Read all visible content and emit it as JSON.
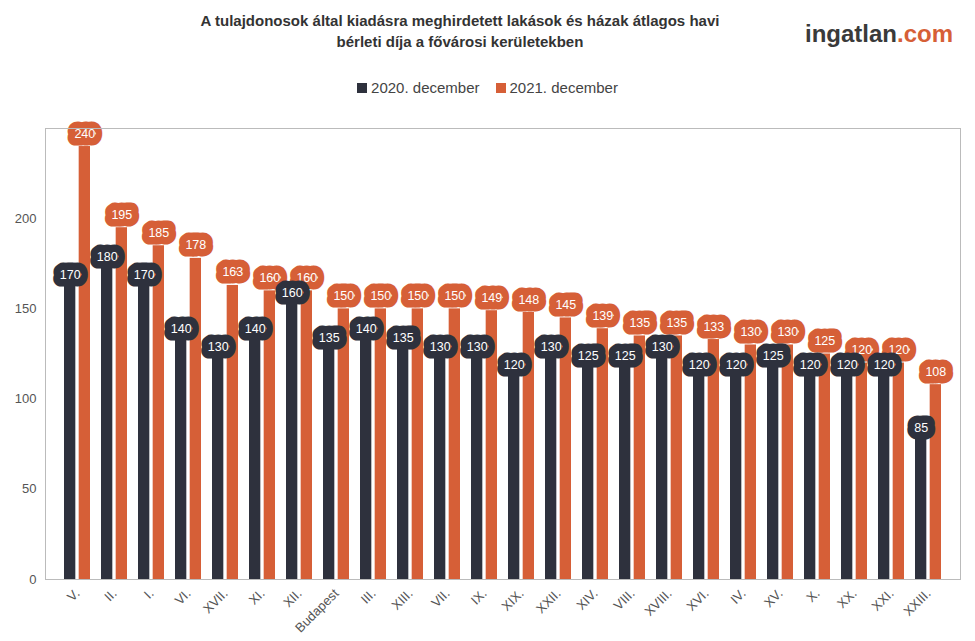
{
  "chart_data": {
    "type": "bar",
    "title": "A tulajdonosok által kiadásra meghirdetett lakások és házak átlagos havi bérleti díja a fővárosi kerületekben",
    "brand": "ingatlan.com",
    "categories": [
      "V.",
      "II.",
      "I.",
      "VI.",
      "XVII.",
      "XI.",
      "XII.",
      "Budapest",
      "III.",
      "XIII.",
      "VII.",
      "IX.",
      "XIX.",
      "XXII.",
      "XIV.",
      "VIII.",
      "XVIII.",
      "XVI.",
      "IV.",
      "XV.",
      "X.",
      "XX.",
      "XXI.",
      "XXIII."
    ],
    "series": [
      {
        "name": "2020. december",
        "color": "#2e313d",
        "values": [
          170,
          180,
          170,
          140,
          130,
          140,
          160,
          135,
          140,
          135,
          130,
          130,
          120,
          130,
          125,
          125,
          130,
          120,
          120,
          125,
          120,
          120,
          120,
          85
        ]
      },
      {
        "name": "2021. december",
        "color": "#d65f37",
        "values": [
          240,
          195,
          185,
          178,
          163,
          160,
          160,
          150,
          150,
          150,
          150,
          149,
          148,
          145,
          139,
          135,
          135,
          133,
          130,
          130,
          125,
          120,
          120,
          108
        ]
      }
    ],
    "ylim": [
      0,
      250
    ],
    "yticks": [
      0,
      50,
      100,
      150,
      200
    ],
    "grid": false,
    "legend": "top",
    "data_labels": true
  }
}
